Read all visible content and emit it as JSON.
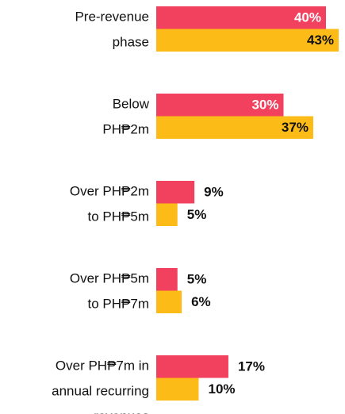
{
  "chart_data": {
    "type": "bar",
    "categories": [
      [
        "Pre-revenue",
        "phase"
      ],
      [
        "Below",
        "PH₱2m"
      ],
      [
        "Over PH₱2m",
        "to  PH₱5m"
      ],
      [
        "Over PH₱5m",
        "to  PH₱7m"
      ],
      [
        "Over PH₱7m in",
        "annual recurring",
        "revenues"
      ]
    ],
    "series": [
      {
        "color": "#f2415f",
        "values": [
          40,
          30,
          9,
          5,
          17
        ],
        "value_labels": [
          "40%",
          "30%",
          "9%",
          "5%",
          "17%"
        ]
      },
      {
        "color": "#fdbb17",
        "values": [
          43,
          37,
          5,
          6,
          10
        ],
        "value_labels": [
          "43%",
          "37%",
          "5%",
          "6%",
          "10%"
        ]
      }
    ]
  }
}
